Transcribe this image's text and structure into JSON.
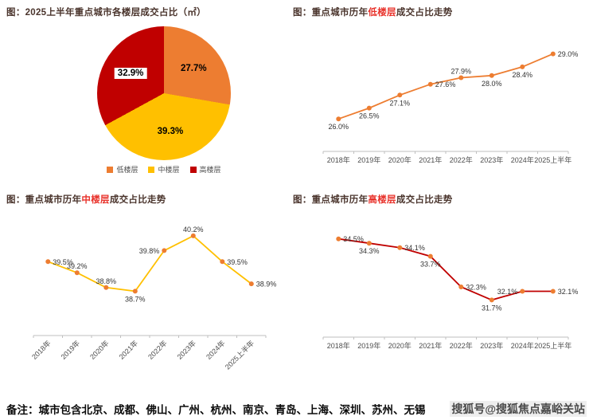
{
  "colors": {
    "orange": "#ED7D31",
    "yellow": "#FFC000",
    "red": "#C00000",
    "title_highlight": "#E8312A",
    "axis": "#BFBFBF"
  },
  "chart_data": [
    {
      "type": "pie",
      "title": "图：2025上半年重点城市各楼层成交占比（㎡）",
      "legend_position": "bottom",
      "slices": [
        {
          "label": "低楼层",
          "value": 27.7,
          "color": "#ED7D31",
          "label_bg": "transparent"
        },
        {
          "label": "中楼层",
          "value": 39.3,
          "color": "#FFC000",
          "label_bg": "transparent"
        },
        {
          "label": "高楼层",
          "value": 32.9,
          "color": "#C00000",
          "label_bg": "#FFFFFF"
        }
      ]
    },
    {
      "type": "line",
      "title_prefix": "图：重点城市历年",
      "title_highlight": "低楼层",
      "title_suffix": "成交占比走势",
      "categories": [
        "2018年",
        "2019年",
        "2020年",
        "2021年",
        "2022年",
        "2023年",
        "2024年",
        "2025上半年"
      ],
      "values": [
        26.0,
        26.5,
        27.1,
        27.6,
        27.9,
        28.0,
        28.4,
        29.0
      ],
      "ylim": [
        24.5,
        29.5
      ],
      "line_color": "#ED7D31",
      "marker_color": "#ED7D31",
      "axis_color": "#BFBFBF",
      "label_pos": [
        "below",
        "below",
        "below",
        "right",
        "above",
        "below",
        "below",
        "right"
      ],
      "rotate_x_labels": false,
      "grid": false
    },
    {
      "type": "line",
      "title_prefix": "图：重点城市历年",
      "title_highlight": "中楼层",
      "title_suffix": "成交占比走势",
      "categories": [
        "2018年",
        "2019年",
        "2020年",
        "2021年",
        "2022年",
        "2023年",
        "2024年",
        "2025上半年"
      ],
      "values": [
        39.5,
        39.2,
        38.8,
        38.7,
        39.8,
        40.2,
        39.5,
        38.9
      ],
      "ylim": [
        37.5,
        40.5
      ],
      "line_color": "#FFC000",
      "marker_color": "#ED7D31",
      "axis_color": "#BFBFBF",
      "label_pos": [
        "right",
        "above",
        "above",
        "below",
        "left",
        "above",
        "right",
        "right"
      ],
      "rotate_x_labels": true,
      "grid": false
    },
    {
      "type": "line",
      "title_prefix": "图：重点城市历年",
      "title_highlight": "高楼层",
      "title_suffix": "成交占比走势",
      "categories": [
        "2018年",
        "2019年",
        "2020年",
        "2021年",
        "2022年",
        "2023年",
        "2024年",
        "2025上半年"
      ],
      "values": [
        34.5,
        34.3,
        34.1,
        33.7,
        32.3,
        31.7,
        32.1,
        32.1
      ],
      "ylim": [
        30.0,
        35.0
      ],
      "line_color": "#C00000",
      "marker_color": "#ED7D31",
      "axis_color": "#BFBFBF",
      "label_pos": [
        "right",
        "below",
        "right",
        "below",
        "right",
        "below",
        "left",
        "right"
      ],
      "rotate_x_labels": false,
      "grid": false
    }
  ],
  "footer": {
    "note": "备注：城市包含北京、成都、佛山、广州、杭州、南京、青岛、上海、深圳、苏州、无锡",
    "watermark": "搜狐号@搜狐焦点嘉峪关站"
  }
}
